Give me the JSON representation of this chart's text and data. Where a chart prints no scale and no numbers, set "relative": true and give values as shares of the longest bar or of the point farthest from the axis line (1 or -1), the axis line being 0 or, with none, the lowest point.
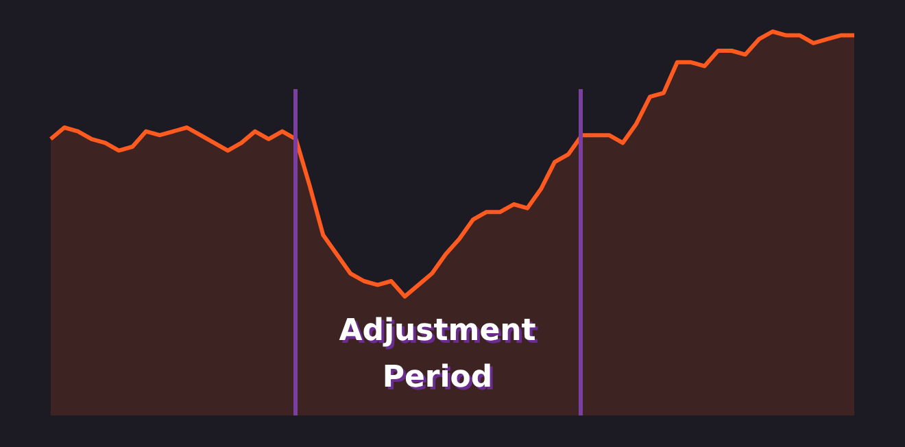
{
  "chart_data": {
    "type": "area",
    "relative": true,
    "categories": [
      null,
      null,
      null,
      null,
      null,
      null,
      null,
      null,
      null,
      null,
      null,
      null,
      null,
      null,
      null,
      null,
      null,
      null,
      null,
      null,
      null,
      null,
      null,
      null,
      null,
      null,
      null,
      null,
      null,
      null,
      null,
      null,
      null,
      null,
      null,
      null,
      null,
      null,
      null,
      null,
      null,
      null,
      null,
      null,
      null,
      null,
      null,
      null,
      null,
      null,
      null,
      null,
      null,
      null,
      null,
      null,
      null,
      null,
      null,
      null
    ],
    "tick_labels": false,
    "legend": false,
    "series": [
      {
        "color": "#ff5a1f",
        "values": [
          0.72,
          0.75,
          0.74,
          0.72,
          0.71,
          0.69,
          0.7,
          0.74,
          0.73,
          0.74,
          0.75,
          0.73,
          0.71,
          0.69,
          0.71,
          0.74,
          0.72,
          0.74,
          0.72,
          0.6,
          0.47,
          0.42,
          0.37,
          0.35,
          0.34,
          0.35,
          0.31,
          0.34,
          0.37,
          0.42,
          0.46,
          0.51,
          0.53,
          0.53,
          0.55,
          0.54,
          0.59,
          0.66,
          0.68,
          0.73,
          0.73,
          0.73,
          0.71,
          0.76,
          0.83,
          0.84,
          0.92,
          0.92,
          0.91,
          0.95,
          0.95,
          0.94,
          0.98,
          1,
          0.99,
          0.99,
          0.97,
          0.98,
          0.99,
          0.99
        ]
      }
    ],
    "annotations": [
      "Adjustment Period"
    ]
  }
}
